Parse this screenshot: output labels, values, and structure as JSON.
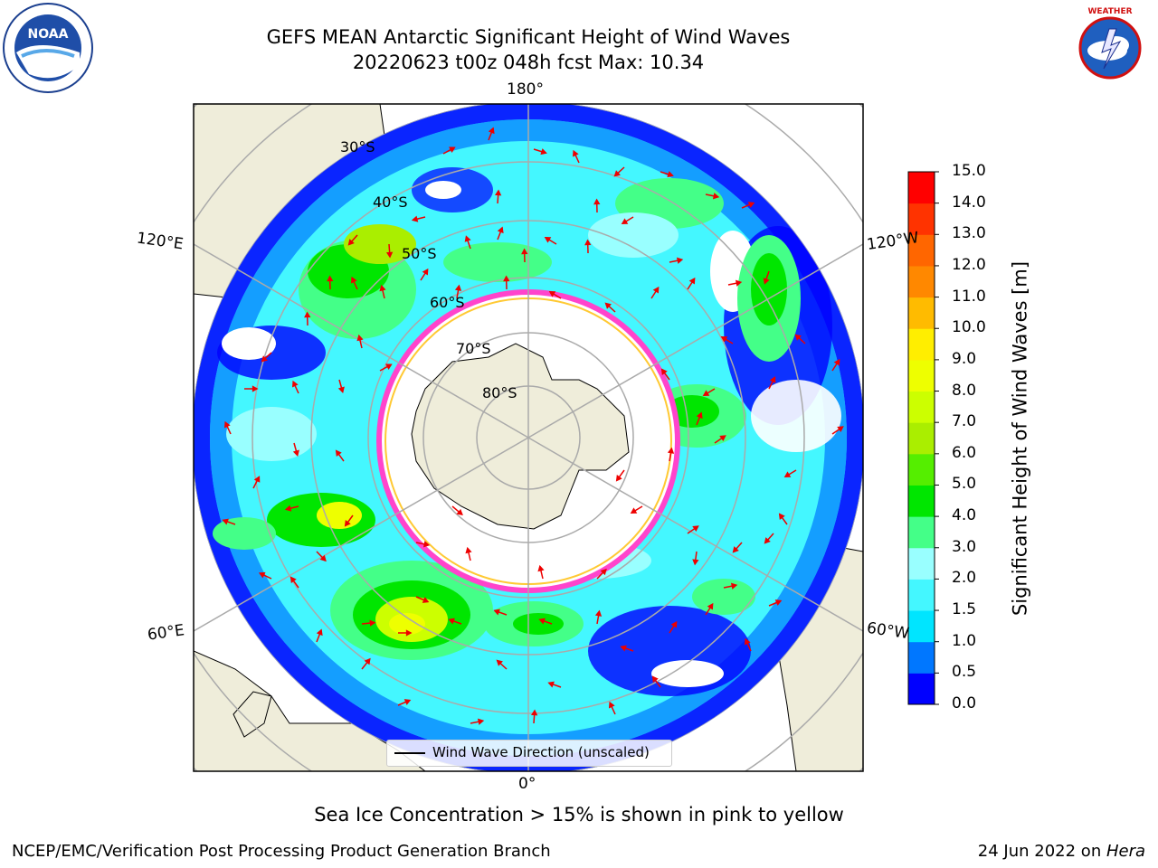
{
  "title_line1": "GEFS MEAN Antarctic Significant Height of Wind Waves",
  "title_line2": "20220623 t00z 048h fcst   Max: 10.34",
  "logos": {
    "left": "NOAA",
    "right": "NATIONAL WEATHER SERVICE"
  },
  "map": {
    "projection": "south-polar-stereographic",
    "longitude_labels": {
      "top": "180°",
      "upper_left": "120°E",
      "upper_right": "120°W",
      "lower_left": "60°E",
      "lower_right": "60°W",
      "bottom": "0°"
    },
    "latitude_labels": [
      "30°S",
      "40°S",
      "50°S",
      "60°S",
      "70°S",
      "80°S"
    ],
    "legend": "Wind Wave Direction (unscaled)",
    "land_color": "#efedda",
    "sea_ice_color": "#ff44cc"
  },
  "colorbar": {
    "title": "Significant Height of Wind Waves [m]",
    "ticks": [
      "0.0",
      "0.5",
      "1.0",
      "1.5",
      "2.0",
      "3.0",
      "4.0",
      "5.0",
      "6.0",
      "7.0",
      "8.0",
      "9.0",
      "10.0",
      "11.0",
      "12.0",
      "13.0",
      "14.0",
      "15.0"
    ],
    "colors": [
      "#0000ff",
      "#0077ff",
      "#00e5ff",
      "#44f7ff",
      "#99ffff",
      "#44ff88",
      "#00e600",
      "#55ee00",
      "#aaee00",
      "#ccff00",
      "#eeff00",
      "#ffee00",
      "#ffbb00",
      "#ff8800",
      "#ff6600",
      "#ff3300",
      "#ff0000"
    ]
  },
  "note": "Sea Ice Concentration > 15% is shown in pink to yellow",
  "footer_left": "NCEP/EMC/Verification Post Processing Product Generation Branch",
  "footer_right_date": "24 Jun 2022 on ",
  "footer_right_machine": "Hera"
}
